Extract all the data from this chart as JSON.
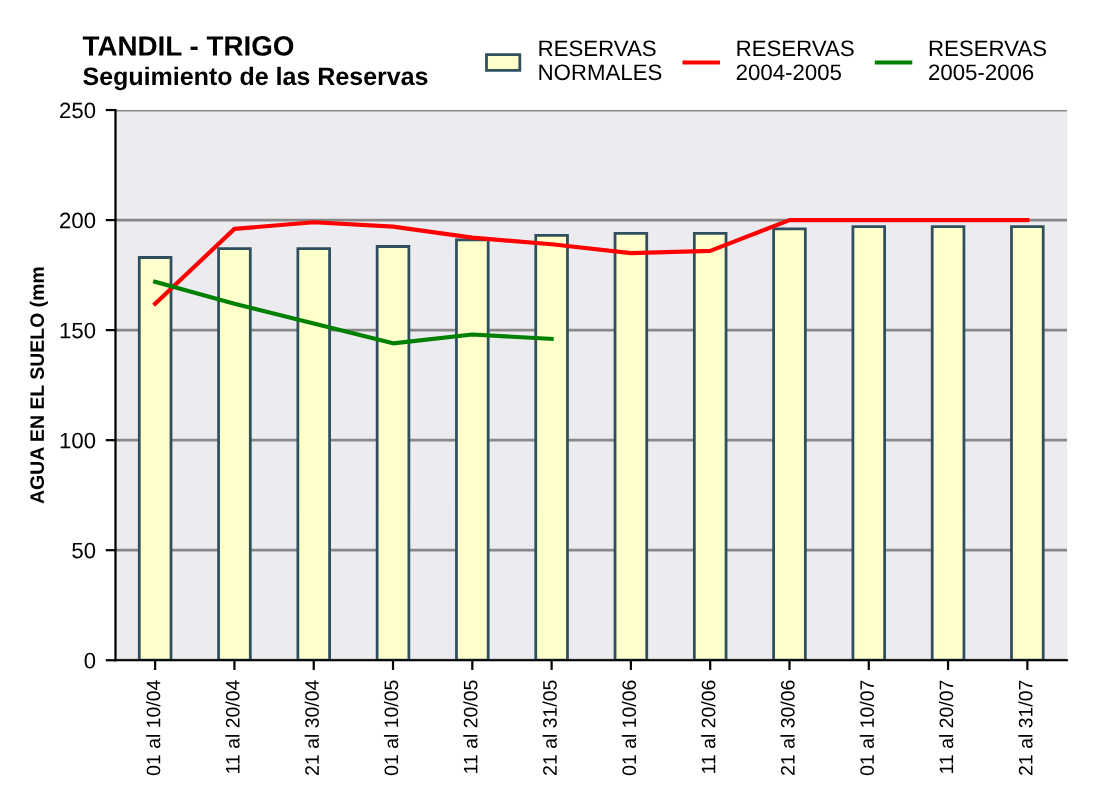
{
  "chart_data": {
    "type": "bar",
    "title": "TANDIL - TRIGO",
    "subtitle": "Seguimiento de las Reservas",
    "ylabel": "AGUA EN EL SUELO (mm",
    "categories": [
      "01 al 10/04",
      "11 al 20/04",
      "21 al 30/04",
      "01 al 10/05",
      "11 al 20/05",
      "21 al 31/05",
      "01 al 10/06",
      "11 al 20/06",
      "21 al 30/06",
      "01 al 10/07",
      "11 al 20/07",
      "21 al 31/07"
    ],
    "series": [
      {
        "name": "RESERVAS\nNORMALES",
        "color": "#ffffcc",
        "values": [
          183,
          187,
          187,
          188,
          191,
          193,
          194,
          194,
          196,
          197,
          197,
          197
        ]
      },
      {
        "name": "RESERVAS\n2004-2005",
        "type": "line",
        "color": "#ff0000",
        "values": [
          162,
          196,
          199,
          197,
          192,
          189,
          185,
          186,
          200,
          200,
          200,
          200
        ]
      },
      {
        "name": "RESERVAS\n2005-2006",
        "type": "line",
        "color": "#008000",
        "values": [
          172,
          162,
          153,
          144,
          148,
          146,
          null,
          null,
          null,
          null,
          null,
          null
        ]
      }
    ],
    "ylim": [
      0,
      250
    ],
    "yticks": [
      0,
      50,
      100,
      150,
      200,
      250
    ],
    "grid": "y",
    "legend": "top right",
    "marker": "none",
    "line_style": "solid"
  }
}
